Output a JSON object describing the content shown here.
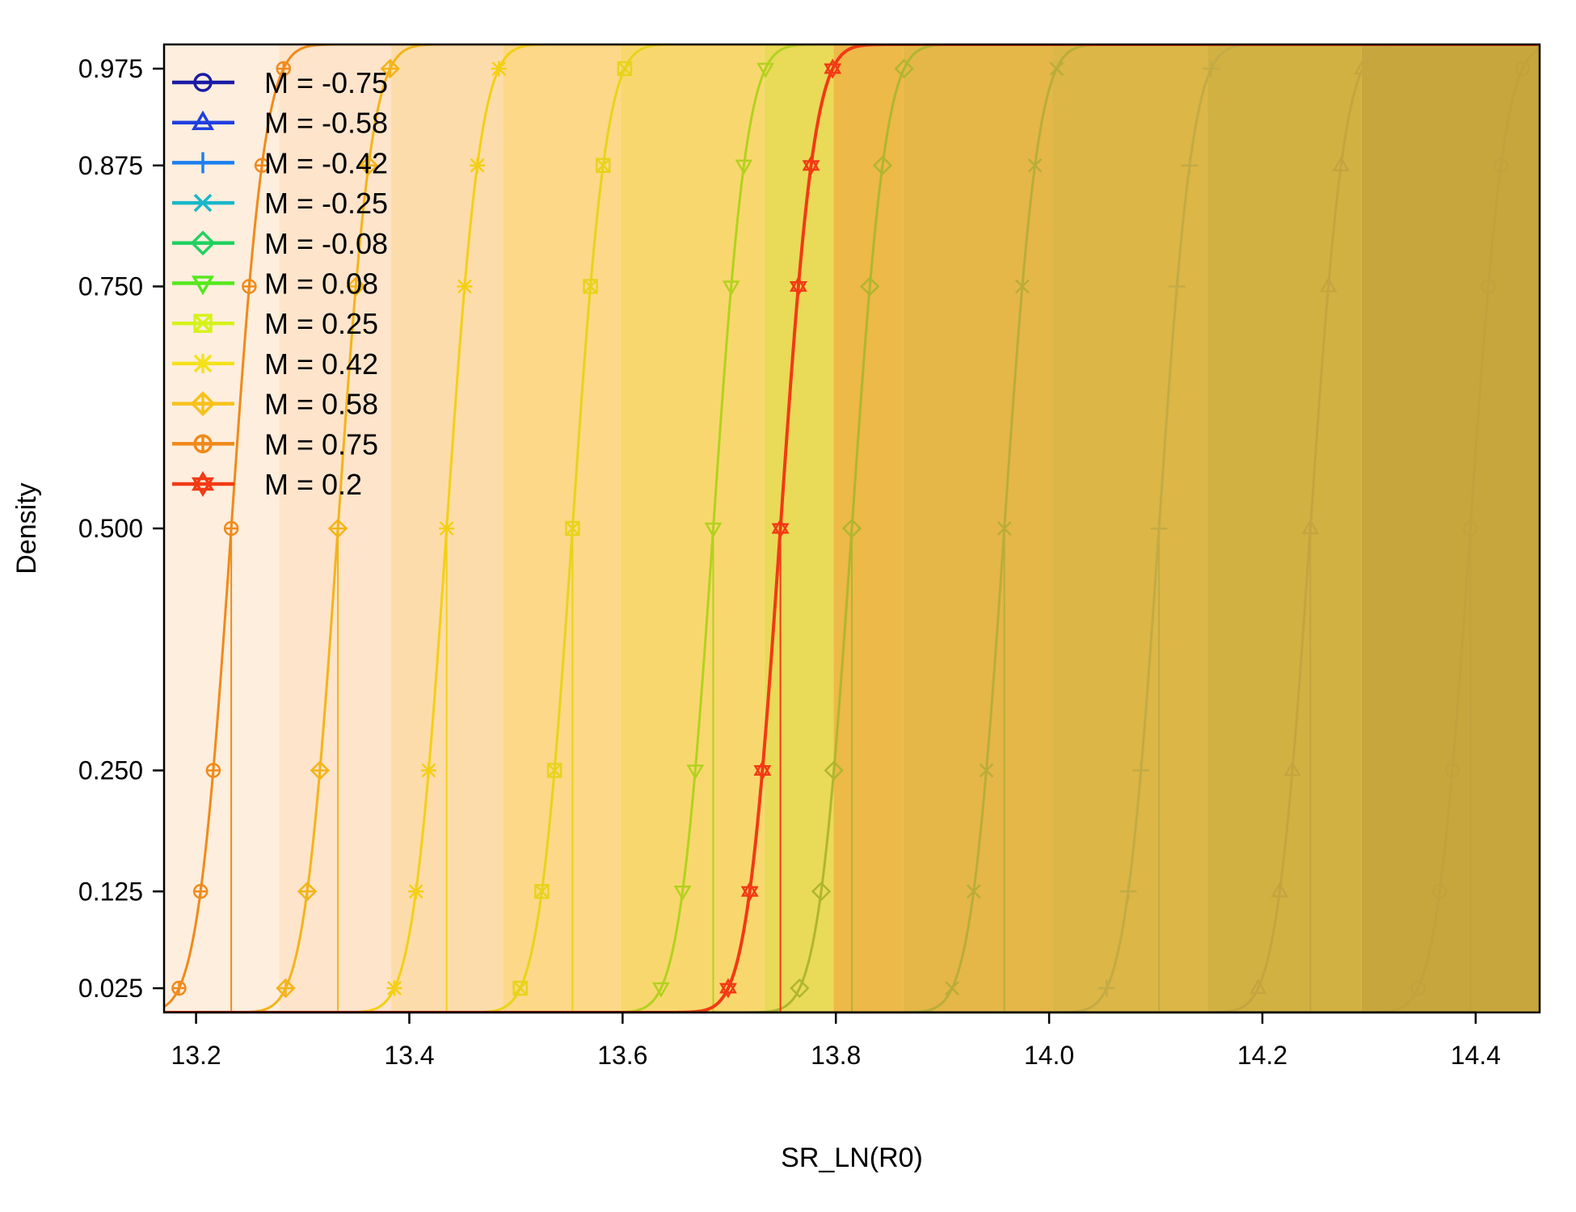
{
  "chart_data": {
    "type": "line",
    "xlabel": "SR_LN(R0)",
    "ylabel": "Density",
    "xlim": [
      13.17,
      14.46
    ],
    "ylim": [
      0.0,
      1.0
    ],
    "x_ticks": [
      "13.2",
      "13.4",
      "13.6",
      "13.8",
      "14.0",
      "14.2",
      "14.4"
    ],
    "y_ticks": [
      "0.025",
      "0.125",
      "0.250",
      "0.500",
      "0.750",
      "0.875",
      "0.975"
    ],
    "legend_position": "top-left",
    "legend": [
      {
        "label": "M = -0.75",
        "color": "#1a1aa6",
        "marker": "circle"
      },
      {
        "label": "M = -0.58",
        "color": "#1f3fe0",
        "marker": "triangle"
      },
      {
        "label": "M = -0.42",
        "color": "#1b7ff0",
        "marker": "plus"
      },
      {
        "label": "M = -0.25",
        "color": "#19b7c9",
        "marker": "cross"
      },
      {
        "label": "M = -0.08",
        "color": "#20d160",
        "marker": "diamond"
      },
      {
        "label": "M = 0.08",
        "color": "#55e81f",
        "marker": "triangle-down"
      },
      {
        "label": "M = 0.25",
        "color": "#d6f21b",
        "marker": "square-cross"
      },
      {
        "label": "M = 0.42",
        "color": "#f5e11b",
        "marker": "asterisk"
      },
      {
        "label": "M = 0.58",
        "color": "#f7c11a",
        "marker": "diamond-plus"
      },
      {
        "label": "M = 0.75",
        "color": "#f08a1a",
        "marker": "circle-plus"
      },
      {
        "label": "M = 0.2",
        "color": "#f23a14",
        "marker": "star-of-david"
      }
    ],
    "series": [
      {
        "name": "M = -0.75",
        "median": 14.395,
        "sd": 0.025,
        "color": "#c2a23d",
        "marker": "circle"
      },
      {
        "name": "M = -0.58",
        "median": 14.245,
        "sd": 0.025,
        "color": "#c4a53f",
        "marker": "triangle"
      },
      {
        "name": "M = -0.42",
        "median": 14.103,
        "sd": 0.025,
        "color": "#c3ab45",
        "marker": "plus"
      },
      {
        "name": "M = -0.25",
        "median": 13.958,
        "sd": 0.025,
        "color": "#b9ad3a",
        "marker": "cross"
      },
      {
        "name": "M = -0.08",
        "median": 13.815,
        "sd": 0.025,
        "color": "#afb62f",
        "marker": "diamond"
      },
      {
        "name": "M = 0.08",
        "median": 13.685,
        "sd": 0.025,
        "color": "#b4d11e",
        "marker": "triangle-down"
      },
      {
        "name": "M = 0.25",
        "median": 13.553,
        "sd": 0.025,
        "color": "#e6d41b",
        "marker": "square-cross"
      },
      {
        "name": "M = 0.42",
        "median": 13.435,
        "sd": 0.025,
        "color": "#f3cf16",
        "marker": "asterisk"
      },
      {
        "name": "M = 0.58",
        "median": 13.333,
        "sd": 0.025,
        "color": "#f3b418",
        "marker": "diamond-plus"
      },
      {
        "name": "M = 0.75",
        "median": 13.233,
        "sd": 0.025,
        "color": "#f08a1a",
        "marker": "circle-plus"
      },
      {
        "name": "M = 0.2",
        "median": 13.748,
        "sd": 0.025,
        "color": "#f23a14",
        "marker": "star-of-david"
      }
    ],
    "background_bands": [
      {
        "from": 13.17,
        "to": 13.278,
        "color": "#fdeede"
      },
      {
        "from": 13.278,
        "to": 13.383,
        "color": "#fde4cb"
      },
      {
        "from": 13.383,
        "to": 13.488,
        "color": "#fddcab"
      },
      {
        "from": 13.488,
        "to": 13.598,
        "color": "#fcd888"
      },
      {
        "from": 13.598,
        "to": 13.733,
        "color": "#f8d86e"
      },
      {
        "from": 13.733,
        "to": 13.798,
        "color": "#e9da58"
      },
      {
        "from": 13.798,
        "to": 13.863,
        "color": "#edb948"
      },
      {
        "from": 13.863,
        "to": 14.003,
        "color": "#e5b748"
      },
      {
        "from": 14.003,
        "to": 14.148,
        "color": "#dcb646"
      },
      {
        "from": 14.148,
        "to": 14.293,
        "color": "#d2b143"
      },
      {
        "from": 14.293,
        "to": 14.46,
        "color": "#c8a63e"
      }
    ],
    "grid": false
  }
}
